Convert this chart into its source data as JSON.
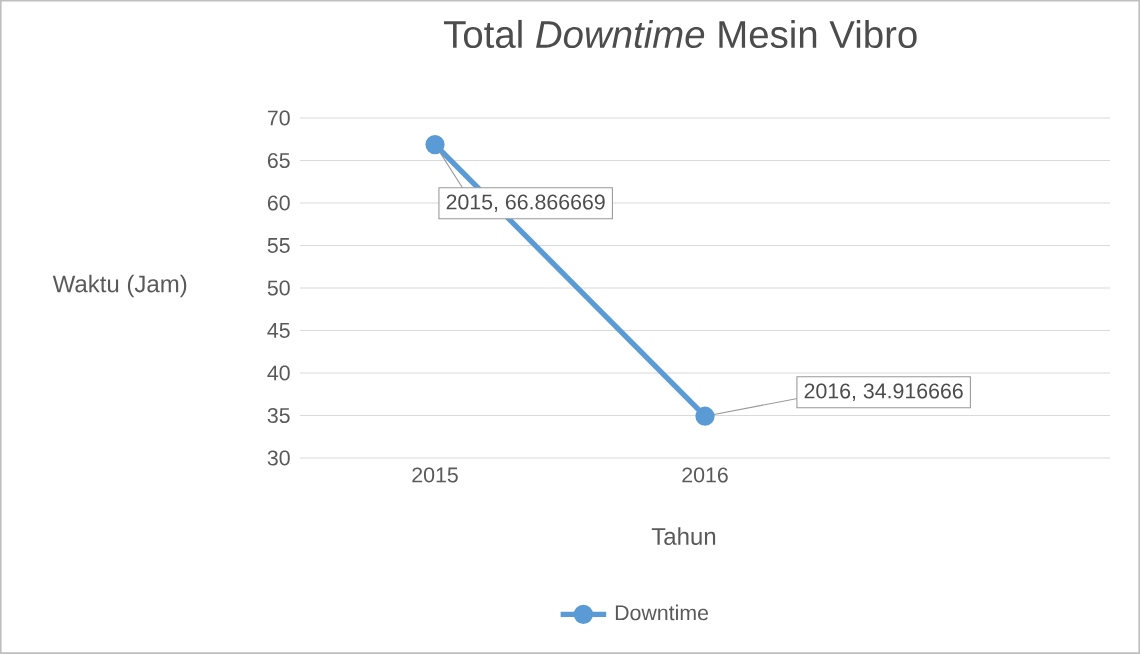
{
  "chart_data": {
    "type": "line",
    "title": "Total *Downtime* Mesin Vibro",
    "xlabel": "Tahun",
    "ylabel": "Waktu (Jam)",
    "categories": [
      "2015",
      "2016",
      null
    ],
    "series": [
      {
        "name": "Downtime",
        "color": "#5b9bd5",
        "values": [
          66.866669,
          34.916666,
          null
        ],
        "value_labels": [
          "2015, 66.866669",
          "2016, 34.916666",
          null
        ]
      }
    ],
    "ylim": [
      30,
      70
    ],
    "yticks": [
      30,
      35,
      40,
      45,
      50,
      55,
      60,
      65,
      70
    ],
    "grid": "y",
    "legend": "bottom",
    "marker": "circle",
    "line_style": "solid"
  }
}
